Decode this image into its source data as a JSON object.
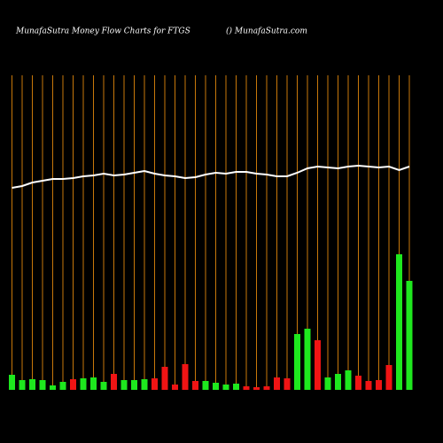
{
  "chart_data": {
    "type": "bar",
    "title": "MunafaSutra  Money Flow  Charts for FTGS",
    "subtitle": "() MunafaSutra.com",
    "ylim": [
      0,
      355
    ],
    "grid_color": "#c8780a",
    "values": [
      17,
      11,
      12,
      11,
      5,
      9,
      12,
      13,
      14,
      9,
      18,
      11,
      11,
      12,
      13,
      26,
      6,
      29,
      10,
      10,
      8,
      6,
      7,
      4,
      3,
      4,
      14,
      13,
      63,
      69,
      56,
      14,
      18,
      22,
      16,
      10,
      11,
      28,
      153,
      123
    ],
    "colors": [
      "#1ee81e",
      "#1ee81e",
      "#1ee81e",
      "#1ee81e",
      "#1ee81e",
      "#1ee81e",
      "#f01414",
      "#1ee81e",
      "#1ee81e",
      "#1ee81e",
      "#f01414",
      "#1ee81e",
      "#1ee81e",
      "#1ee81e",
      "#f01414",
      "#f01414",
      "#f01414",
      "#f01414",
      "#f01414",
      "#1ee81e",
      "#1ee81e",
      "#1ee81e",
      "#1ee81e",
      "#f01414",
      "#f01414",
      "#f01414",
      "#f01414",
      "#f01414",
      "#1ee81e",
      "#1ee81e",
      "#f01414",
      "#1ee81e",
      "#1ee81e",
      "#1ee81e",
      "#f01414",
      "#f01414",
      "#f01414",
      "#f01414",
      "#1ee81e",
      "#1ee81e"
    ],
    "line": {
      "color": "#ffffff",
      "values": [
        228,
        230,
        234,
        236,
        238,
        238,
        239,
        241,
        242,
        244,
        242,
        243,
        245,
        247,
        244,
        242,
        241,
        239,
        240,
        243,
        245,
        244,
        246,
        246,
        244,
        243,
        241,
        241,
        245,
        250,
        252,
        251,
        250,
        252,
        253,
        252,
        251,
        252,
        248,
        252
      ]
    }
  }
}
